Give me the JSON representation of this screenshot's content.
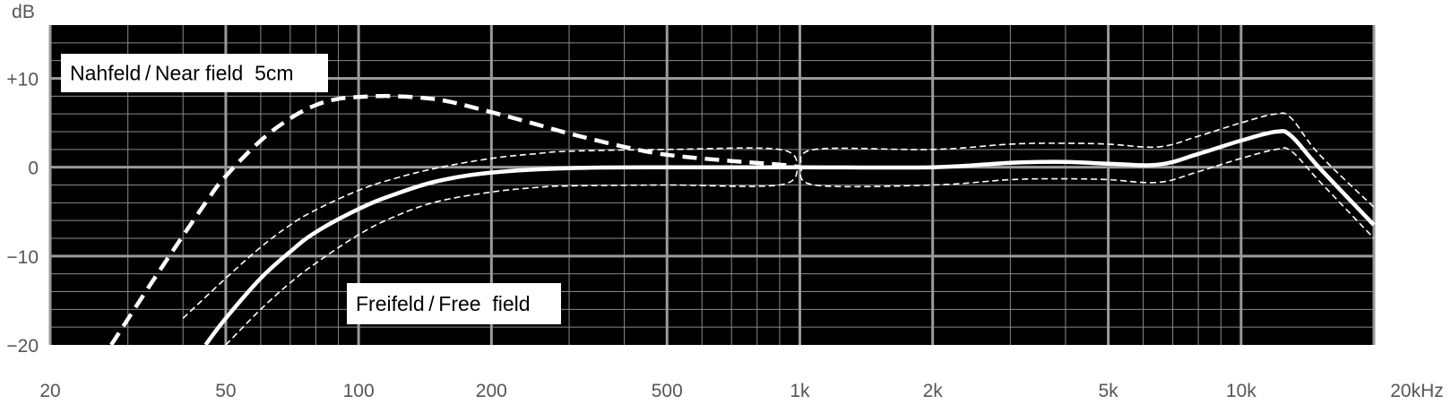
{
  "chart_data": {
    "type": "line",
    "title": "",
    "x_unit": "Hz",
    "y_unit": "dB",
    "x_scale": "log",
    "xlim": [
      20,
      20000
    ],
    "ylim": [
      -20,
      16
    ],
    "grid": true,
    "background_color": "#000000",
    "line_color": "#ffffff",
    "x_ticks": [
      {
        "value": 20,
        "label": "20"
      },
      {
        "value": 50,
        "label": "50"
      },
      {
        "value": 100,
        "label": "100"
      },
      {
        "value": 200,
        "label": "200"
      },
      {
        "value": 500,
        "label": "500"
      },
      {
        "value": 1000,
        "label": "1k"
      },
      {
        "value": 2000,
        "label": "2k"
      },
      {
        "value": 5000,
        "label": "5k"
      },
      {
        "value": 10000,
        "label": "10k"
      },
      {
        "value": 20000,
        "label": "20kHz"
      }
    ],
    "y_ticks": [
      {
        "value": 10,
        "label": "+10"
      },
      {
        "value": 0,
        "label": "0"
      },
      {
        "value": -10,
        "label": "−10"
      },
      {
        "value": -20,
        "label": "−20"
      }
    ],
    "annotations": [
      {
        "text": "Nahfeld / Near field  5cm",
        "series": "near"
      },
      {
        "text": "Freifeld / Free  field",
        "series": "free"
      }
    ],
    "series": [
      {
        "id": "near",
        "style": "dashed-thick",
        "x": [
          27.5,
          35,
          45,
          50,
          60,
          70,
          80,
          90,
          100,
          110,
          120,
          140,
          160,
          200,
          250,
          300,
          400,
          500,
          700,
          900,
          1000
        ],
        "y": [
          -20,
          -12,
          -4,
          -1,
          3,
          5.5,
          7,
          7.7,
          7.9,
          8.0,
          8.0,
          7.8,
          7.4,
          6.2,
          4.9,
          3.8,
          2.3,
          1.4,
          0.7,
          0.3,
          0
        ]
      },
      {
        "id": "free",
        "style": "solid-thick",
        "x": [
          45,
          50,
          60,
          70,
          80,
          100,
          120,
          150,
          200,
          300,
          500,
          1000,
          2000,
          3000,
          4000,
          5000,
          6500,
          8000,
          10000,
          12000,
          13000,
          15000,
          20000
        ],
        "y": [
          -20,
          -17,
          -12.5,
          -9.5,
          -7.3,
          -4.7,
          -3.1,
          -1.6,
          -0.6,
          -0.1,
          0,
          0,
          0,
          0.5,
          0.6,
          0.4,
          0.3,
          1.5,
          3.0,
          4.0,
          3.5,
          0,
          -6.5
        ]
      },
      {
        "id": "tol-upper",
        "style": "dashed-thin",
        "x": [
          40,
          50,
          60,
          70,
          80,
          100,
          120,
          150,
          200,
          250,
          300,
          500,
          900,
          1000,
          1080,
          2000,
          3000,
          4000,
          5000,
          6500,
          8000,
          10000,
          12000,
          13000,
          15000,
          20000
        ],
        "y": [
          -17,
          -12.5,
          -9,
          -6.5,
          -4.8,
          -2.6,
          -1.3,
          -0.1,
          1.0,
          1.5,
          1.8,
          2.0,
          2.0,
          0,
          2.0,
          2.0,
          2.6,
          2.7,
          2.6,
          2.3,
          3.5,
          5.0,
          6.0,
          5.5,
          1.5,
          -4.5
        ]
      },
      {
        "id": "tol-lower",
        "style": "dashed-thin",
        "x": [
          50,
          60,
          70,
          80,
          100,
          120,
          150,
          200,
          250,
          300,
          500,
          900,
          1000,
          1080,
          2000,
          3000,
          4000,
          5000,
          6500,
          8000,
          10000,
          12000,
          13000,
          15000,
          20000
        ],
        "y": [
          -20,
          -16,
          -13,
          -10.8,
          -7.6,
          -5.6,
          -3.9,
          -2.8,
          -2.3,
          -2.1,
          -2.0,
          -2.0,
          0,
          -2.0,
          -2.0,
          -1.4,
          -1.3,
          -1.4,
          -1.7,
          -0.5,
          1.0,
          2.0,
          1.8,
          -1.5,
          -8.0
        ]
      }
    ]
  }
}
